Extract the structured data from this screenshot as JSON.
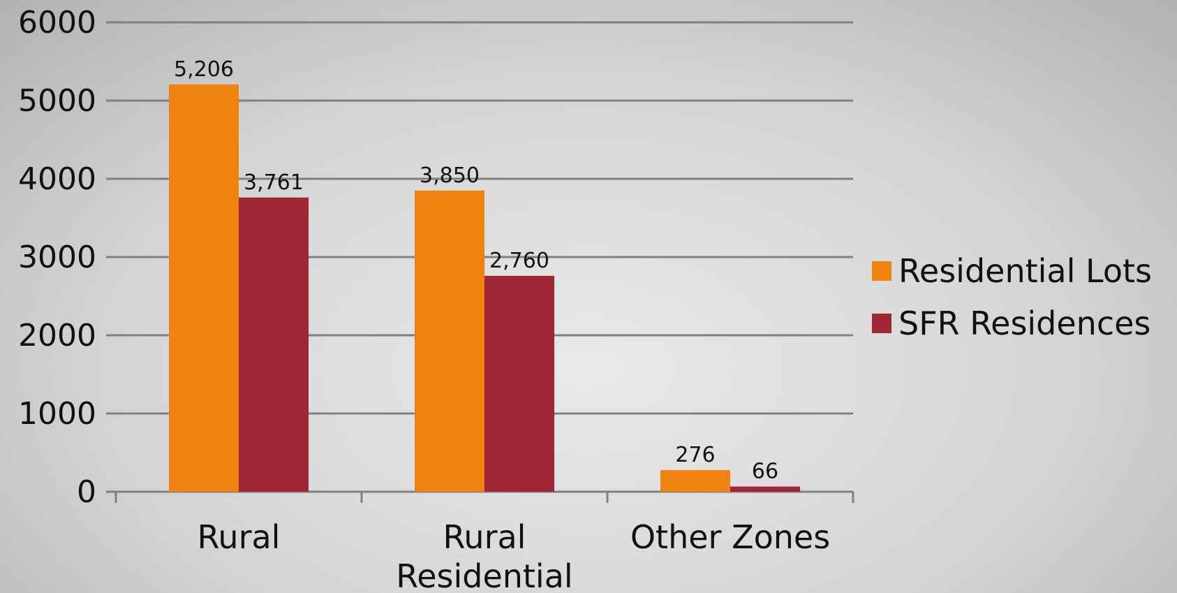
{
  "chart_data": {
    "type": "bar",
    "title": "",
    "xlabel": "",
    "ylabel": "",
    "categories": [
      [
        "Rural"
      ],
      [
        "Rural",
        "Residential"
      ],
      [
        "Other Zones"
      ]
    ],
    "series": [
      {
        "name": "Residential Lots",
        "values": [
          5206,
          3850,
          276
        ],
        "labels": [
          "5,206",
          "3,850",
          "276"
        ],
        "color": "#f0820f"
      },
      {
        "name": "SFR Residences",
        "values": [
          3761,
          2760,
          66
        ],
        "labels": [
          "3,761",
          "2,760",
          "66"
        ],
        "color": "#a02535"
      }
    ],
    "ylim": [
      0,
      6000
    ],
    "yticks": [
      0,
      1000,
      2000,
      3000,
      4000,
      5000,
      6000
    ],
    "ytick_labels": [
      "0",
      "1000",
      "2000",
      "3000",
      "4000",
      "5000",
      "6000"
    ],
    "grid": true,
    "legend": "right",
    "colors": {
      "gridline": "#808080",
      "axis": "#808080"
    }
  }
}
